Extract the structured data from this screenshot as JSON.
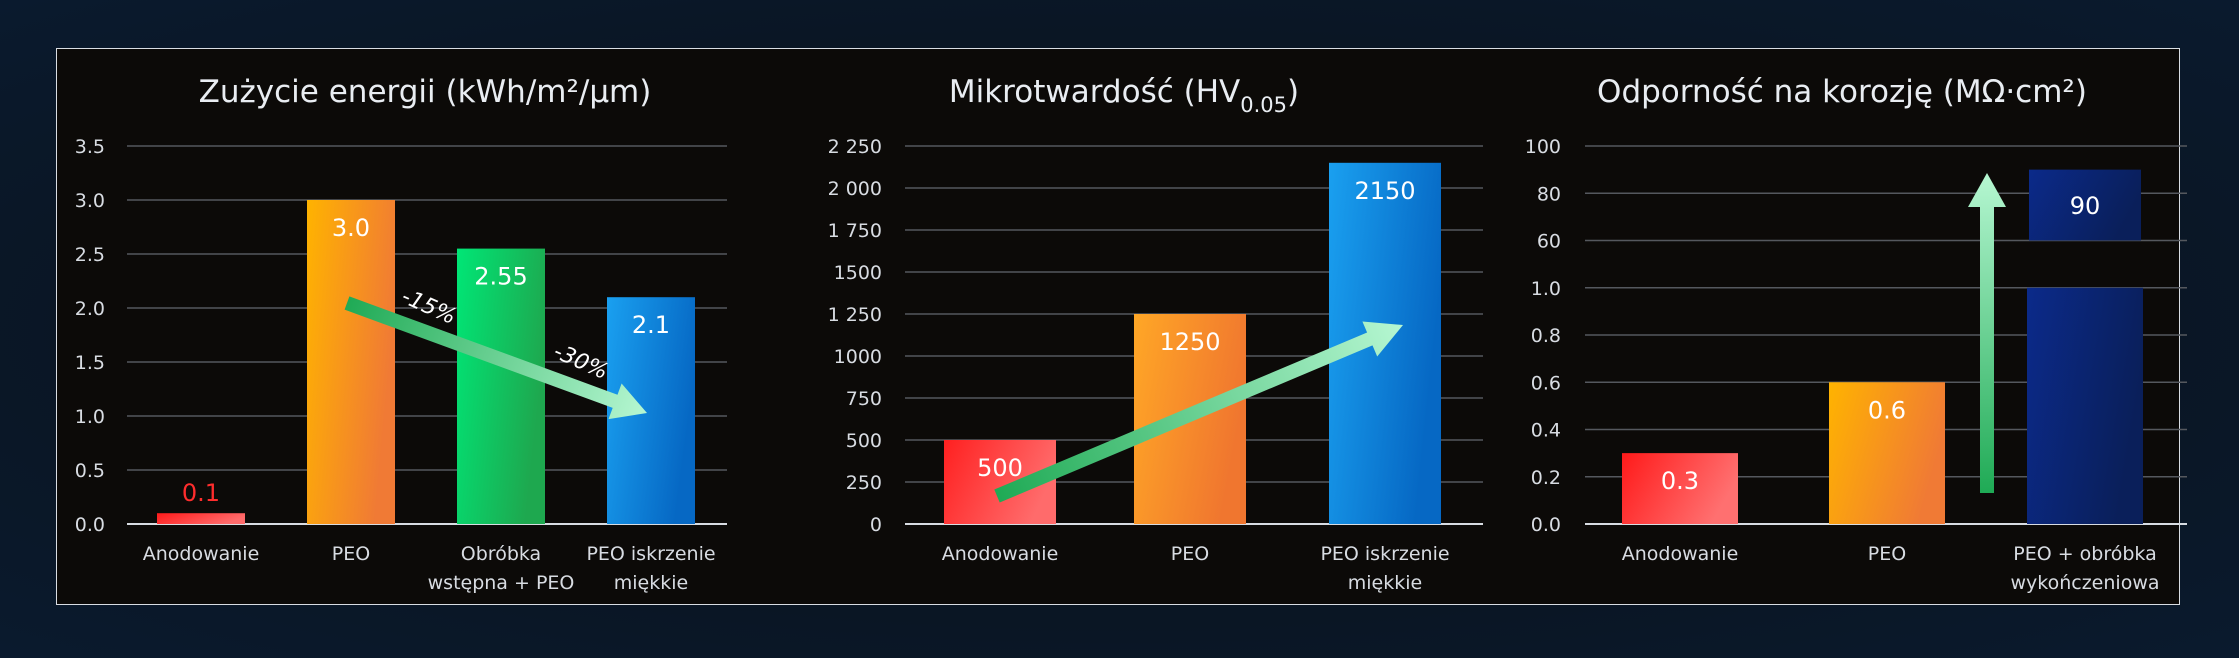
{
  "chart_data": [
    {
      "type": "bar",
      "title": "Zużycie energii (kWh/m²/μm)",
      "categories": [
        "Anodowanie",
        "PEO",
        "Obróbka wstępna + PEO",
        "PEO iskrzenie miękkie"
      ],
      "category_lines": [
        [
          "Anodowanie"
        ],
        [
          "PEO"
        ],
        [
          "Obróbka",
          "wstępna + PEO"
        ],
        [
          "PEO iskrzenie",
          "miękkie"
        ]
      ],
      "values": [
        0.1,
        3.0,
        2.55,
        2.1
      ],
      "value_labels": [
        "0.1",
        "3.0",
        "2.55",
        "2.1"
      ],
      "yticks": [
        "0.0",
        "0.5",
        "1.0",
        "1.5",
        "2.0",
        "2.5",
        "3.0",
        "3.5"
      ],
      "ylim": [
        0,
        3.5
      ],
      "grid": true,
      "annotations": [
        "-15%",
        "-30%"
      ],
      "bar_colors": [
        [
          "#ff1a1a",
          "#ff6b6b"
        ],
        [
          "#ffb300",
          "#f07a35"
        ],
        [
          "#00e676",
          "#1ea84f"
        ],
        [
          "#1aa0f0",
          "#0668c4"
        ]
      ],
      "value_label_colors": [
        "#ff2d2d",
        "#ffffff",
        "#ffffff",
        "#ffffff"
      ]
    },
    {
      "type": "bar",
      "title": "Mikrotwardość (HV",
      "title_subscript": "0.05",
      "title_suffix": ")",
      "categories": [
        "Anodowanie",
        "PEO",
        "PEO iskrzenie miękkie"
      ],
      "category_lines": [
        [
          "Anodowanie"
        ],
        [
          "PEO"
        ],
        [
          "PEO iskrzenie",
          "miękkie"
        ]
      ],
      "values": [
        500,
        1250,
        2150
      ],
      "value_labels": [
        "500",
        "1250",
        "2150"
      ],
      "yticks": [
        "0",
        "250",
        "500",
        "750",
        "1000",
        "1 250",
        "1500",
        "1 750",
        "2 000",
        "2 250"
      ],
      "ylim": [
        0,
        2250
      ],
      "grid": true,
      "bar_colors": [
        [
          "#ff2020",
          "#ff6b6b"
        ],
        [
          "#ffa726",
          "#f0762f"
        ],
        [
          "#1aa0f0",
          "#0668c4"
        ]
      ],
      "value_label_colors": [
        "#ffffff",
        "#ffffff",
        "#ffffff"
      ]
    },
    {
      "type": "bar",
      "title": "Odporność na korozję (MΩ·cm²)",
      "categories": [
        "Anodowanie",
        "PEO",
        "PEO + obróbka wykończeniowa"
      ],
      "category_lines": [
        [
          "Anodowanie"
        ],
        [
          "PEO"
        ],
        [
          "PEO + obróbka",
          "wykończeniowa"
        ]
      ],
      "values": [
        0.3,
        0.6,
        90
      ],
      "value_labels": [
        "0.3",
        "0.6",
        "90"
      ],
      "yticks": [
        "0.0",
        "0.2",
        "0.4",
        "0.6",
        "0.8",
        "1.0",
        "60",
        "80",
        "100"
      ],
      "y_axis": "broken: 0–1.0 linear, then 60–100",
      "grid": true,
      "bar_colors": [
        [
          "#ff1a1a",
          "#ff7070"
        ],
        [
          "#ffb300",
          "#f07a35"
        ],
        [
          "#0b2a8a",
          "#0a1f5a"
        ]
      ],
      "value_label_colors": [
        "#ffffff",
        "#ffffff",
        "#ffffff"
      ]
    }
  ]
}
